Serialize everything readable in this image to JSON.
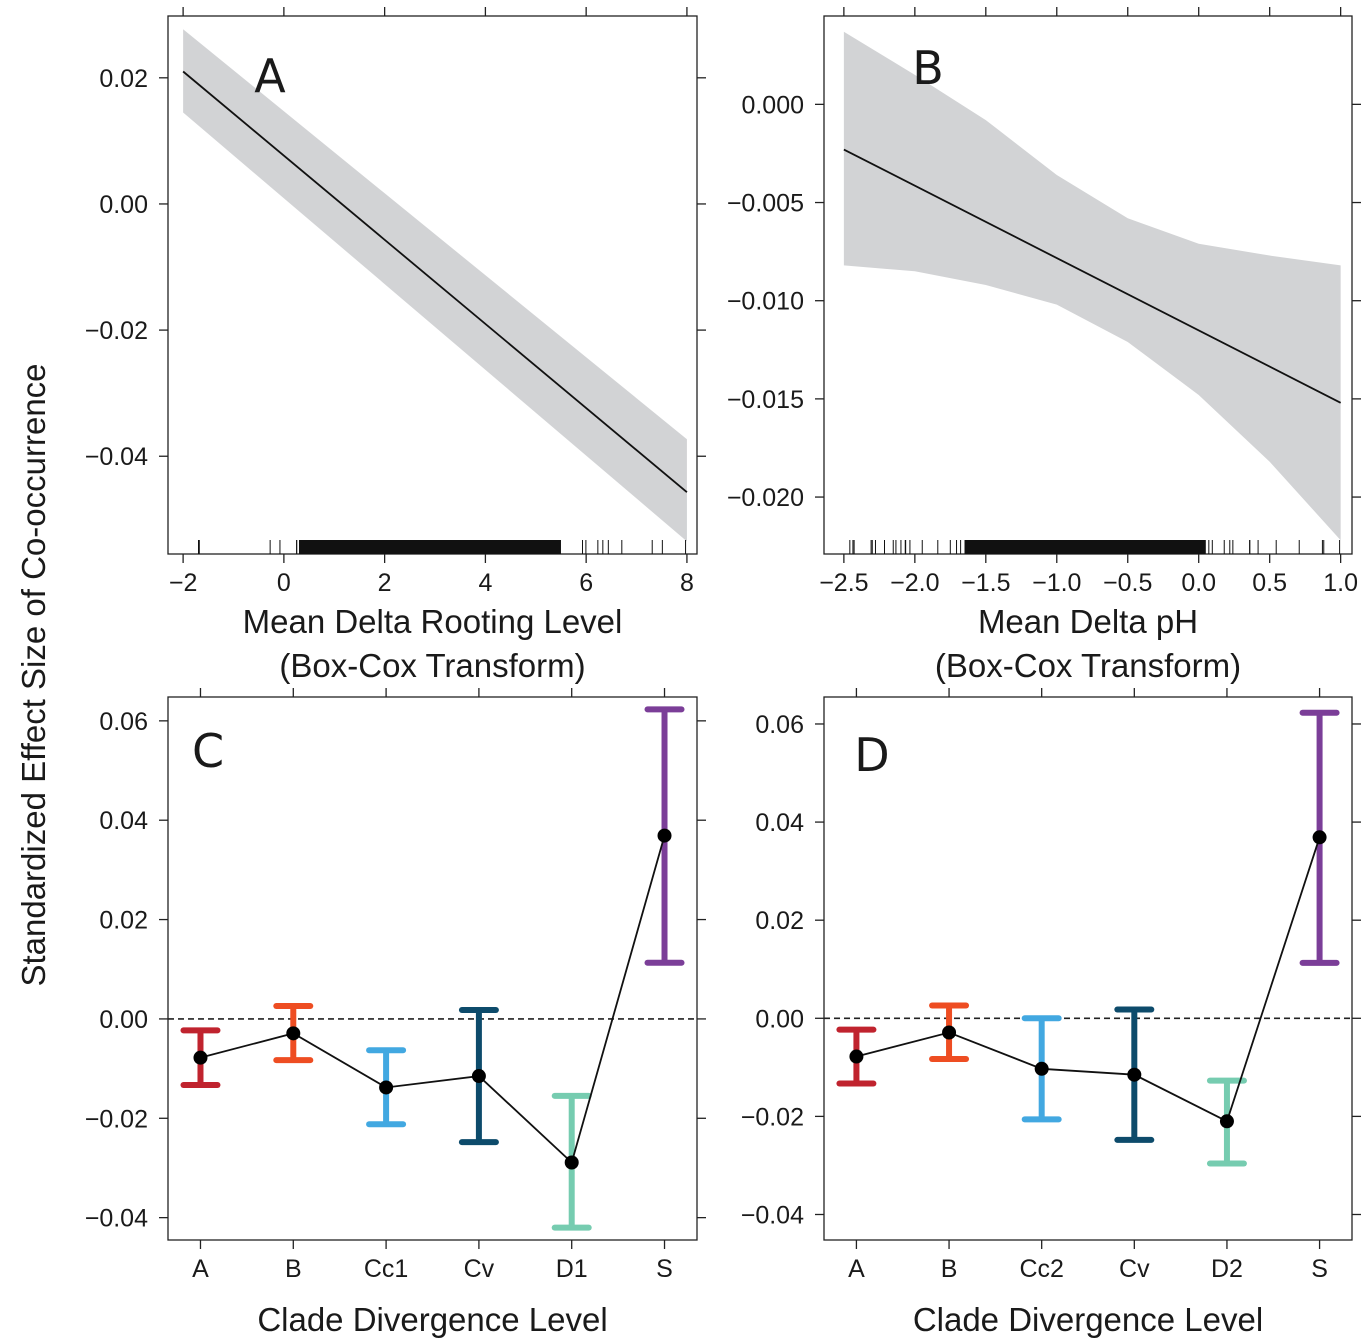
{
  "figure": {
    "ylabel": "Standardized Effect Size of Co-occurrence"
  },
  "chart_data": [
    {
      "panel": "A",
      "type": "line",
      "xlabel": [
        "Mean Delta Rooting Level",
        "(Box-Cox Transform)"
      ],
      "xlim": [
        -2.3,
        8.2
      ],
      "ylim": [
        -0.0555,
        0.0298
      ],
      "xticks": [
        -2,
        0,
        2,
        4,
        6,
        8
      ],
      "xtick_labels": [
        "−2",
        "0",
        "2",
        "4",
        "6",
        "8"
      ],
      "yticks": [
        0.02,
        0.0,
        -0.02,
        -0.04
      ],
      "ytick_labels": [
        "0.02",
        "0.00",
        "−0.02",
        "−0.04"
      ],
      "line": {
        "x": [
          -2,
          8
        ],
        "y": [
          0.021,
          -0.0457
        ]
      },
      "band": {
        "x": [
          -2,
          8
        ],
        "lower": [
          0.0145,
          -0.0535
        ],
        "upper": [
          0.0277,
          -0.0373
        ]
      },
      "rug": {
        "from": -2,
        "to": 8,
        "dense_from": 0.3,
        "dense_to": 5.5
      },
      "grid": false,
      "legend": "none"
    },
    {
      "panel": "B",
      "type": "line",
      "xlabel": [
        "Mean Delta pH",
        "(Box-Cox Transform)"
      ],
      "xlim": [
        -2.64,
        1.08
      ],
      "ylim": [
        -0.0229,
        0.0045
      ],
      "xticks": [
        -2.5,
        -2.0,
        -1.5,
        -1.0,
        -0.5,
        0.0,
        0.5,
        1.0
      ],
      "xtick_labels": [
        "−2.5",
        "−2.0",
        "−1.5",
        "−1.0",
        "−0.5",
        "0.0",
        "0.5",
        "1.0"
      ],
      "yticks": [
        0.0,
        -0.005,
        -0.01,
        -0.015,
        -0.02
      ],
      "ytick_labels": [
        "0.000",
        "−0.005",
        "−0.010",
        "−0.015",
        "−0.020"
      ],
      "line": {
        "x": [
          -2.5,
          1.0
        ],
        "y": [
          -0.0023,
          -0.0152
        ]
      },
      "band": {
        "x": [
          -2.5,
          -2.0,
          -1.5,
          -1.0,
          -0.5,
          0.0,
          0.5,
          1.0
        ],
        "lower": [
          -0.0082,
          -0.0085,
          -0.0092,
          -0.0102,
          -0.0121,
          -0.0148,
          -0.0182,
          -0.0222
        ],
        "upper": [
          0.0037,
          0.0015,
          -0.0008,
          -0.0036,
          -0.0058,
          -0.0071,
          -0.0077,
          -0.0082
        ]
      },
      "rug": {
        "from": -2.5,
        "to": 1.0,
        "dense_from": -1.65,
        "dense_to": 0.05
      },
      "grid": false,
      "legend": "none"
    },
    {
      "panel": "C",
      "type": "errorbar",
      "xlabel": [
        "Clade Divergence Level"
      ],
      "categories": [
        "A",
        "B",
        "Cc1",
        "Cv",
        "D1",
        "S"
      ],
      "values": [
        -0.0078,
        -0.0029,
        -0.0138,
        -0.0115,
        -0.0289,
        0.0369
      ],
      "lower": [
        -0.0133,
        -0.0083,
        -0.0212,
        -0.0248,
        -0.042,
        0.0113
      ],
      "upper": [
        -0.0023,
        0.0026,
        -0.0063,
        0.0018,
        -0.0155,
        0.0623
      ],
      "colors": [
        "#c0232e",
        "#ee4d22",
        "#42a8e1",
        "#0d4b6b",
        "#76ccb0",
        "#7b3e98"
      ],
      "ylim": [
        -0.0445,
        0.0648
      ],
      "yticks": [
        0.06,
        0.04,
        0.02,
        0.0,
        -0.02,
        -0.04
      ],
      "ytick_labels": [
        "0.06",
        "0.04",
        "0.02",
        "0.00",
        "−0.02",
        "−0.04"
      ],
      "reference_line": 0.0,
      "grid": false,
      "legend": "none"
    },
    {
      "panel": "D",
      "type": "errorbar",
      "xlabel": [
        "Clade Divergence Level"
      ],
      "categories": [
        "A",
        "B",
        "Cc2",
        "Cv",
        "D2",
        "S"
      ],
      "values": [
        -0.0078,
        -0.0029,
        -0.0103,
        -0.0115,
        -0.021,
        0.0369
      ],
      "lower": [
        -0.0133,
        -0.0083,
        -0.0206,
        -0.0248,
        -0.0296,
        0.0113
      ],
      "upper": [
        -0.0023,
        0.0026,
        0.0,
        0.0018,
        -0.0127,
        0.0623
      ],
      "colors": [
        "#c0232e",
        "#ee4d22",
        "#42a8e1",
        "#0d4b6b",
        "#76ccb0",
        "#7b3e98"
      ],
      "ylim": [
        -0.0452,
        0.0655
      ],
      "yticks": [
        0.06,
        0.04,
        0.02,
        0.0,
        -0.02,
        -0.04
      ],
      "ytick_labels": [
        "0.06",
        "0.04",
        "0.02",
        "0.00",
        "−0.02",
        "−0.04"
      ],
      "reference_line": 0.0,
      "grid": false,
      "legend": "none"
    }
  ]
}
